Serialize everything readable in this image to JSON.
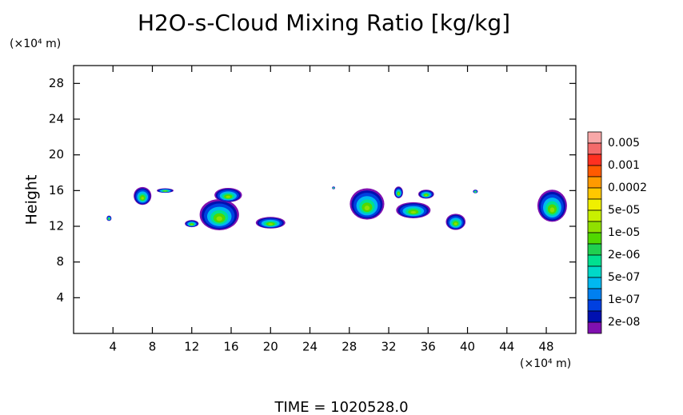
{
  "chart_data": {
    "type": "contour",
    "title": "H2O-s-Cloud Mixing Ratio [kg/kg]",
    "y_unit": "(×10⁴ m)",
    "x_unit": "(×10⁴ m)",
    "ylabel": "Height",
    "footer": "TIME = 1020528.0",
    "xlim": [
      0,
      51
    ],
    "ylim": [
      0,
      30
    ],
    "xticks": [
      4,
      8,
      12,
      16,
      20,
      24,
      28,
      32,
      36,
      40,
      44,
      48
    ],
    "yticks": [
      4,
      8,
      12,
      16,
      20,
      24,
      28
    ],
    "colorbar": {
      "colors": [
        "#f8a8a8",
        "#f46a6a",
        "#ff3020",
        "#ff5a00",
        "#ff9a00",
        "#ffc800",
        "#f0f000",
        "#c8f000",
        "#90e000",
        "#50d800",
        "#20d050",
        "#00e090",
        "#00d8c8",
        "#00b8f0",
        "#0080f0",
        "#0040e0",
        "#0010b0",
        "#8010b0"
      ],
      "ticks": [
        {
          "value": 0.005,
          "label": "0.005"
        },
        {
          "value": 0.001,
          "label": "0.001"
        },
        {
          "value": 0.0002,
          "label": "0.0002"
        },
        {
          "value": 5e-05,
          "label": "5e-05"
        },
        {
          "value": 1e-05,
          "label": "1e-05"
        },
        {
          "value": 2e-06,
          "label": "2e-06"
        },
        {
          "value": 5e-07,
          "label": "5e-07"
        },
        {
          "value": 1e-07,
          "label": "1e-07"
        },
        {
          "value": 2e-08,
          "label": "2e-08"
        }
      ]
    },
    "cells": [
      {
        "x": 3.6,
        "y": 12.9,
        "w": 0.5,
        "h": 0.6
      },
      {
        "x": 7.0,
        "y": 15.4,
        "w": 1.8,
        "h": 2.0
      },
      {
        "x": 9.3,
        "y": 16.0,
        "w": 1.7,
        "h": 0.5
      },
      {
        "x": 12.0,
        "y": 12.3,
        "w": 1.4,
        "h": 0.8
      },
      {
        "x": 14.8,
        "y": 13.3,
        "w": 4.0,
        "h": 3.5
      },
      {
        "x": 15.7,
        "y": 15.5,
        "w": 2.8,
        "h": 1.6
      },
      {
        "x": 20.0,
        "y": 12.4,
        "w": 3.0,
        "h": 1.3
      },
      {
        "x": 26.4,
        "y": 16.3,
        "w": 0.3,
        "h": 0.3
      },
      {
        "x": 29.8,
        "y": 14.5,
        "w": 3.5,
        "h": 3.5
      },
      {
        "x": 33.0,
        "y": 15.8,
        "w": 0.9,
        "h": 1.3
      },
      {
        "x": 34.5,
        "y": 13.8,
        "w": 3.5,
        "h": 1.8
      },
      {
        "x": 35.8,
        "y": 15.6,
        "w": 1.6,
        "h": 1.0
      },
      {
        "x": 38.8,
        "y": 12.5,
        "w": 2.0,
        "h": 1.8
      },
      {
        "x": 40.8,
        "y": 15.9,
        "w": 0.5,
        "h": 0.4
      },
      {
        "x": 48.6,
        "y": 14.3,
        "w": 3.0,
        "h": 3.6
      }
    ]
  }
}
